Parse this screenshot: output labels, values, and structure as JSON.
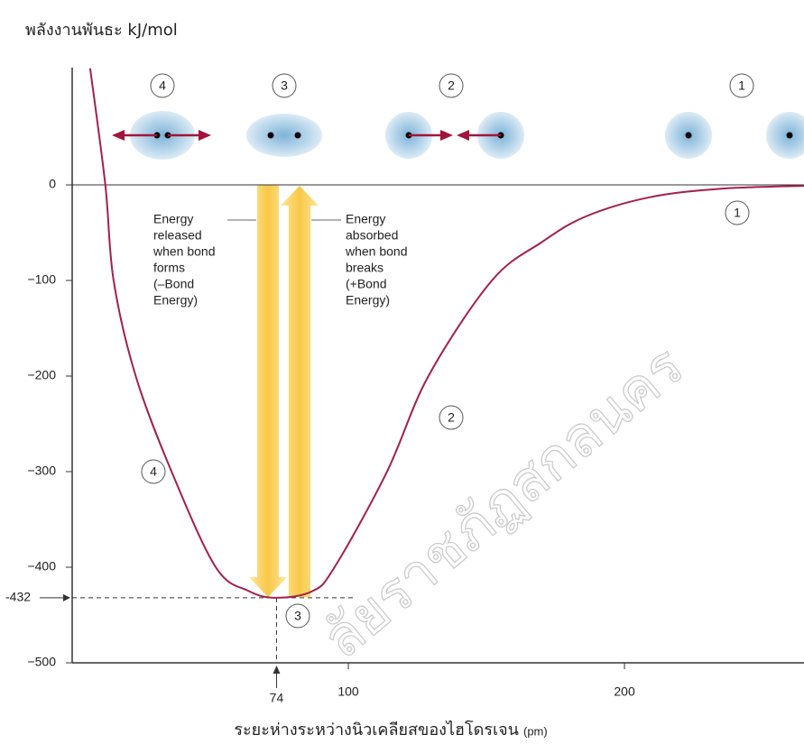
{
  "chart_data": {
    "type": "line",
    "title": "พลังงานพันธะ kJ/mol",
    "x_label": "ระยะห่างระหว่างนิวเคลียสของไฮโดรเจน",
    "x_unit": "(pm)",
    "x": [
      6.5,
      12,
      15,
      23,
      36,
      52,
      64,
      74,
      87,
      95,
      114,
      129,
      152,
      170,
      186,
      209,
      235,
      265
    ],
    "values": [
      122,
      0,
      -100,
      -200,
      -300,
      -400,
      -425,
      -432,
      -425,
      -400,
      -300,
      -200,
      -100,
      -60,
      -33,
      -13,
      -4,
      -1
    ],
    "color": "#a3204c",
    "xlim": [
      0,
      265
    ],
    "ylim": [
      -500,
      122
    ],
    "xticks": [
      100,
      200
    ],
    "yticks": [
      {
        "value": -500,
        "label": "−500"
      },
      {
        "value": -400,
        "label": "−400"
      },
      {
        "value": -300,
        "label": "−300"
      },
      {
        "value": -200,
        "label": "−200"
      },
      {
        "value": -100,
        "label": "−100"
      },
      0
    ],
    "min_marker": {
      "x": 74,
      "y": {
        "value": -432,
        "label": "-432"
      }
    },
    "released_note": [
      "Energy",
      "released",
      "when bond",
      "forms",
      "(–Bond",
      "Energy)"
    ],
    "absorbed_note": [
      "Energy",
      "absorbed",
      "when bond",
      "breaks",
      "(+Bond",
      "Energy)"
    ],
    "stage_labels": [
      "4",
      "3",
      "2",
      "1"
    ],
    "curve_labels": [
      "1",
      "2",
      "3",
      "4"
    ],
    "watermark": "ลัยราชภัฏสกลนคร"
  }
}
